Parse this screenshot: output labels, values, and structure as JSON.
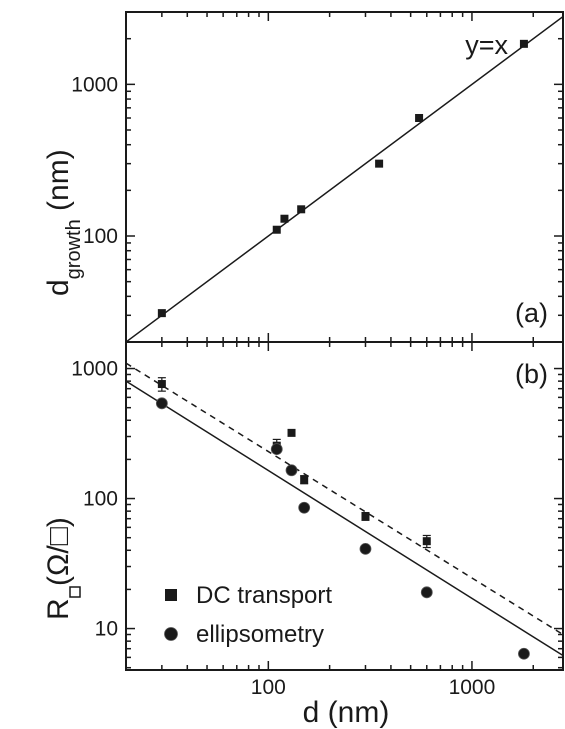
{
  "chart_data": [
    {
      "panel": "(a)",
      "type": "scatter",
      "x_scale": "log",
      "y_scale": "log",
      "xlim": [
        20,
        2800
      ],
      "ylim": [
        20,
        3000
      ],
      "xlabel": "d (nm)",
      "ylabel_main": "d",
      "ylabel_sub": "growth",
      "ylabel_unit": " (nm)",
      "y_ticks": [
        {
          "value": 100,
          "label": "100"
        },
        {
          "value": 1000,
          "label": "1000"
        }
      ],
      "series": [
        {
          "marker": "square",
          "points": [
            {
              "x": 30,
              "y": 31
            },
            {
              "x": 110,
              "y": 110
            },
            {
              "x": 120,
              "y": 130
            },
            {
              "x": 145,
              "y": 150
            },
            {
              "x": 350,
              "y": 300
            },
            {
              "x": 550,
              "y": 600
            },
            {
              "x": 1800,
              "y": 1850
            }
          ]
        }
      ],
      "lines": [
        {
          "name": "y=x",
          "style": "solid",
          "slope": 1,
          "intercept_at_1": 1
        }
      ],
      "annotations": [
        "y=x"
      ]
    },
    {
      "panel": "(b)",
      "type": "scatter",
      "x_scale": "log",
      "y_scale": "log",
      "xlim": [
        20,
        2800
      ],
      "ylim": [
        4.8,
        1600
      ],
      "xlabel": "d (nm)",
      "ylabel_main": "R",
      "ylabel_unit": " (Ω/□)",
      "x_ticks": [
        {
          "value": 100,
          "label": "100"
        },
        {
          "value": 1000,
          "label": "1000"
        }
      ],
      "y_ticks": [
        {
          "value": 10,
          "label": "10"
        },
        {
          "value": 100,
          "label": "100"
        },
        {
          "value": 1000,
          "label": "1000"
        }
      ],
      "series": [
        {
          "name": "DC transport",
          "marker": "square",
          "points": [
            {
              "x": 30,
              "y": 760,
              "err": 90
            },
            {
              "x": 110,
              "y": 255,
              "err": 30
            },
            {
              "x": 130,
              "y": 320,
              "err": 0
            },
            {
              "x": 150,
              "y": 140,
              "err": 10
            },
            {
              "x": 300,
              "y": 73,
              "err": 5
            },
            {
              "x": 600,
              "y": 47,
              "err": 5
            }
          ]
        },
        {
          "name": "ellipsometry",
          "marker": "circle",
          "points": [
            {
              "x": 30,
              "y": 540
            },
            {
              "x": 110,
              "y": 240
            },
            {
              "x": 130,
              "y": 165
            },
            {
              "x": 150,
              "y": 85
            },
            {
              "x": 300,
              "y": 41
            },
            {
              "x": 600,
              "y": 19
            },
            {
              "x": 1800,
              "y": 6.4
            }
          ]
        }
      ],
      "lines": [
        {
          "style": "dashed",
          "x": [
            20,
            2800
          ],
          "y": [
            1100,
            9
          ]
        },
        {
          "style": "solid",
          "x": [
            20,
            2800
          ],
          "y": [
            800,
            6.2
          ]
        }
      ]
    }
  ],
  "colors": {
    "ink": "#1a1a1a",
    "background": "#ffffff"
  },
  "legend_placement": "bottom-left"
}
